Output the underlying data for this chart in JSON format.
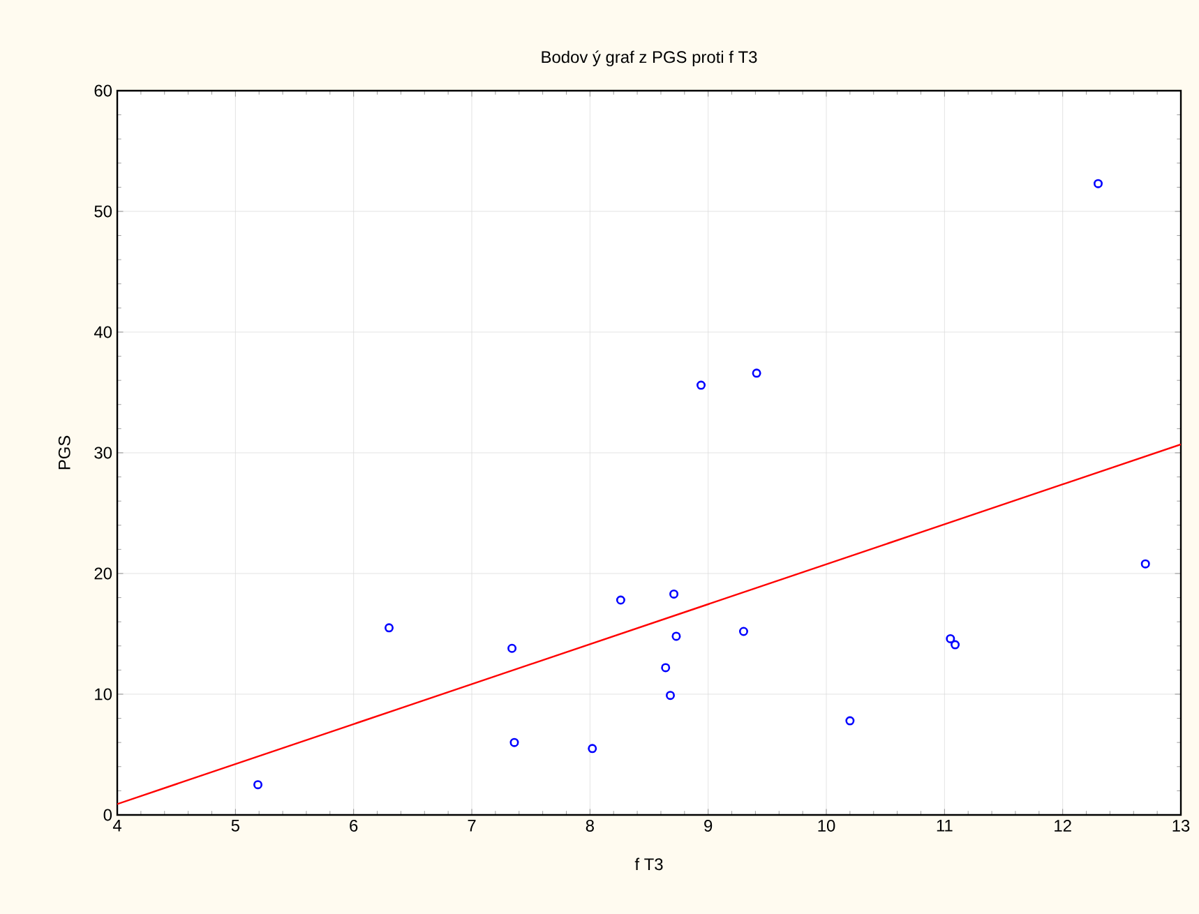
{
  "chart_data": {
    "type": "scatter",
    "title": "Bodov ý graf  z PGS proti f T3",
    "xlabel": "f T3",
    "ylabel": "PGS",
    "xlim": [
      4,
      13
    ],
    "ylim": [
      0,
      60
    ],
    "xticks": [
      4,
      5,
      6,
      7,
      8,
      9,
      10,
      11,
      12,
      13
    ],
    "yticks": [
      0,
      10,
      20,
      30,
      40,
      50,
      60
    ],
    "grid": true,
    "marker": "circle",
    "series": [
      {
        "color": "#0000ff",
        "x": [
          5.19,
          6.3,
          7.34,
          7.36,
          8.02,
          8.26,
          8.64,
          8.68,
          8.71,
          8.73,
          8.94,
          9.3,
          9.41,
          10.2,
          11.05,
          11.09,
          12.3,
          12.7
        ],
        "values": [
          2.5,
          15.5,
          13.8,
          6.0,
          5.5,
          17.8,
          12.2,
          9.9,
          18.3,
          14.8,
          35.6,
          15.2,
          36.6,
          7.8,
          14.6,
          14.1,
          52.3,
          20.8
        ]
      },
      {
        "type": "line",
        "color": "#ff0000",
        "marker": "none",
        "line_style": "solid",
        "x": [
          4,
          13
        ],
        "values": [
          0.9,
          30.7
        ]
      }
    ]
  }
}
